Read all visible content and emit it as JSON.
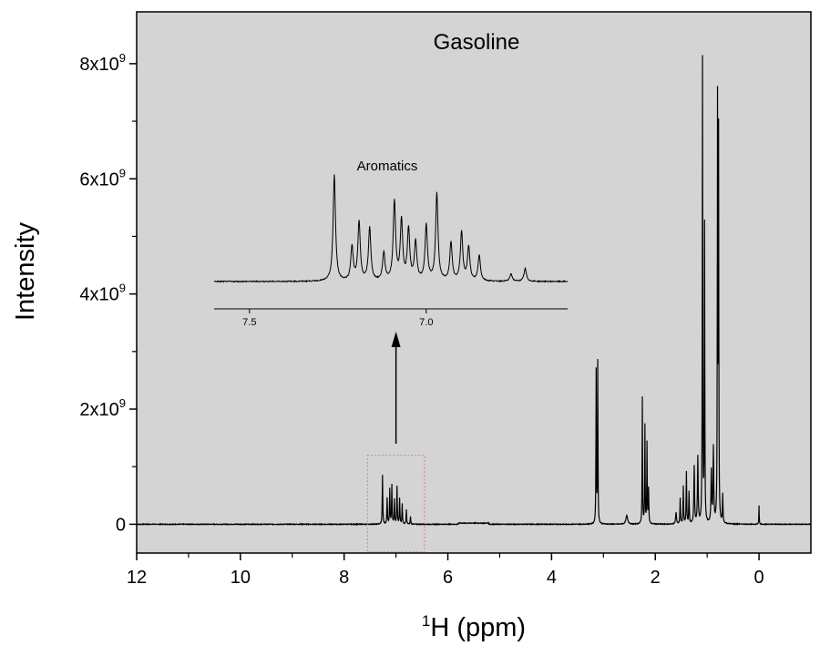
{
  "chart_data": {
    "type": "line",
    "title": "Gasoline",
    "xlabel_sup": "1",
    "xlabel": "H (ppm)",
    "ylabel": "Intensity",
    "xlim": [
      12,
      -1
    ],
    "ylim": [
      -500000000,
      8900000000
    ],
    "x_ticks": [
      12,
      10,
      8,
      6,
      4,
      2,
      0
    ],
    "y_ticks": [
      {
        "value": 0,
        "label": "0",
        "exp": ""
      },
      {
        "value": 2000000000,
        "label": "2x10",
        "exp": "9"
      },
      {
        "value": 4000000000,
        "label": "4x10",
        "exp": "9"
      },
      {
        "value": 6000000000,
        "label": "6x10",
        "exp": "9"
      },
      {
        "value": 8000000000,
        "label": "8x10",
        "exp": "9"
      }
    ],
    "background": "#d4d4d4",
    "line_color": "#000000",
    "highlight_box_color": "#e08080",
    "highlight_region_ppm": [
      7.55,
      6.45
    ],
    "peaks": [
      {
        "x": 7.26,
        "y": 850000000,
        "w": 0.006
      },
      {
        "x": 7.17,
        "y": 450000000,
        "w": 0.006
      },
      {
        "x": 7.12,
        "y": 600000000,
        "w": 0.006
      },
      {
        "x": 7.08,
        "y": 680000000,
        "w": 0.006
      },
      {
        "x": 7.03,
        "y": 420000000,
        "w": 0.006
      },
      {
        "x": 6.98,
        "y": 650000000,
        "w": 0.006
      },
      {
        "x": 6.93,
        "y": 450000000,
        "w": 0.006
      },
      {
        "x": 6.88,
        "y": 350000000,
        "w": 0.006
      },
      {
        "x": 6.8,
        "y": 250000000,
        "w": 0.006
      },
      {
        "x": 6.72,
        "y": 130000000,
        "w": 0.006
      },
      {
        "x": 3.14,
        "y": 2650000000,
        "w": 0.005
      },
      {
        "x": 3.11,
        "y": 2800000000,
        "w": 0.005
      },
      {
        "x": 2.55,
        "y": 150000000,
        "w": 0.02
      },
      {
        "x": 2.25,
        "y": 2200000000,
        "w": 0.005
      },
      {
        "x": 2.2,
        "y": 1700000000,
        "w": 0.005
      },
      {
        "x": 2.16,
        "y": 1400000000,
        "w": 0.005
      },
      {
        "x": 2.13,
        "y": 600000000,
        "w": 0.006
      },
      {
        "x": 1.6,
        "y": 200000000,
        "w": 0.01
      },
      {
        "x": 1.52,
        "y": 450000000,
        "w": 0.006
      },
      {
        "x": 1.46,
        "y": 650000000,
        "w": 0.006
      },
      {
        "x": 1.4,
        "y": 900000000,
        "w": 0.006
      },
      {
        "x": 1.35,
        "y": 550000000,
        "w": 0.006
      },
      {
        "x": 1.25,
        "y": 1000000000,
        "w": 0.008
      },
      {
        "x": 1.18,
        "y": 1150000000,
        "w": 0.008
      },
      {
        "x": 1.09,
        "y": 8050000000,
        "w": 0.005
      },
      {
        "x": 1.05,
        "y": 5150000000,
        "w": 0.005
      },
      {
        "x": 0.92,
        "y": 900000000,
        "w": 0.008
      },
      {
        "x": 0.88,
        "y": 1300000000,
        "w": 0.008
      },
      {
        "x": 0.8,
        "y": 7200000000,
        "w": 0.005
      },
      {
        "x": 0.78,
        "y": 6600000000,
        "w": 0.005
      },
      {
        "x": 0.7,
        "y": 500000000,
        "w": 0.006
      },
      {
        "x": 0.0,
        "y": 330000000,
        "w": 0.004
      }
    ],
    "inset": {
      "title": "Aromatics",
      "xlim": [
        7.6,
        6.6
      ],
      "x_ticks": [
        {
          "value": 7.5,
          "label": "7.5"
        },
        {
          "value": 7.0,
          "label": "7.0"
        }
      ],
      "peaks": [
        {
          "x": 7.26,
          "y": 1.0
        },
        {
          "x": 7.21,
          "y": 0.32
        },
        {
          "x": 7.19,
          "y": 0.55
        },
        {
          "x": 7.16,
          "y": 0.5
        },
        {
          "x": 7.12,
          "y": 0.26
        },
        {
          "x": 7.09,
          "y": 0.74
        },
        {
          "x": 7.07,
          "y": 0.56
        },
        {
          "x": 7.05,
          "y": 0.48
        },
        {
          "x": 7.03,
          "y": 0.36
        },
        {
          "x": 7.0,
          "y": 0.52
        },
        {
          "x": 6.97,
          "y": 0.82
        },
        {
          "x": 6.93,
          "y": 0.36
        },
        {
          "x": 6.9,
          "y": 0.46
        },
        {
          "x": 6.88,
          "y": 0.32
        },
        {
          "x": 6.85,
          "y": 0.24
        },
        {
          "x": 6.76,
          "y": 0.07
        },
        {
          "x": 6.72,
          "y": 0.12
        }
      ]
    }
  }
}
